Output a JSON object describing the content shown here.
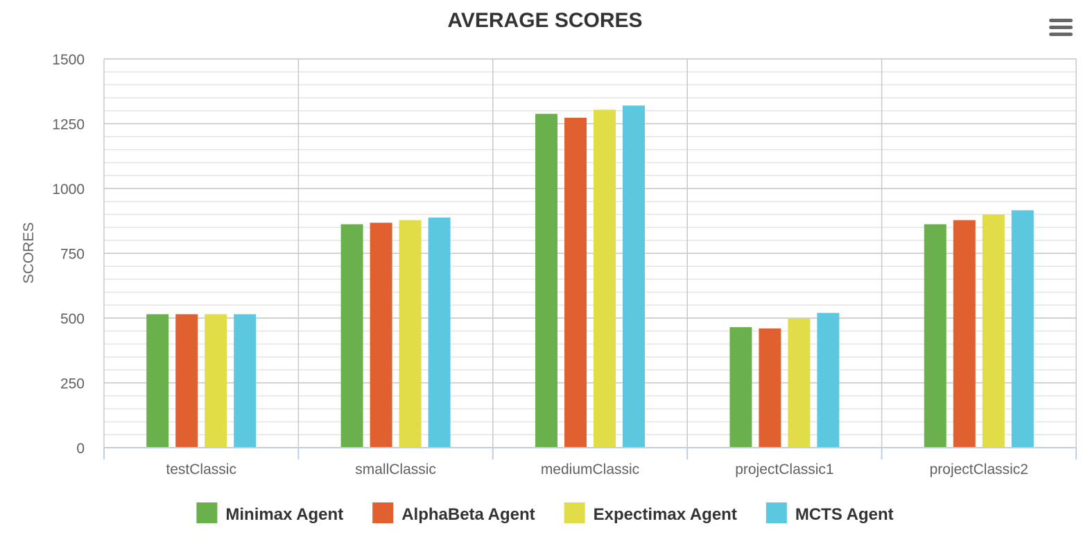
{
  "chart_data": {
    "type": "bar",
    "title": "AVERAGE SCORES",
    "xlabel": "",
    "ylabel": "SCORES",
    "ylim": [
      0,
      1500
    ],
    "yticks": [
      "0",
      "250",
      "500",
      "750",
      "1000",
      "1250",
      "1500"
    ],
    "grid": true,
    "legend_position": "bottom-center",
    "categories": [
      "testClassic",
      "smallClassic",
      "mediumClassic",
      "projectClassic1",
      "projectClassic2"
    ],
    "series": [
      {
        "name": "Minimax Agent",
        "color": "#6ab04c",
        "values": [
          515,
          862,
          1288,
          465,
          862
        ]
      },
      {
        "name": "AlphaBeta Agent",
        "color": "#e06030",
        "values": [
          515,
          868,
          1273,
          460,
          878
        ]
      },
      {
        "name": "Expectimax Agent",
        "color": "#e0dd48",
        "values": [
          515,
          878,
          1304,
          498,
          900
        ]
      },
      {
        "name": "MCTS Agent",
        "color": "#5bc8e0",
        "values": [
          515,
          888,
          1320,
          520,
          916
        ]
      }
    ]
  },
  "menu_icon": "hamburger-menu-icon"
}
